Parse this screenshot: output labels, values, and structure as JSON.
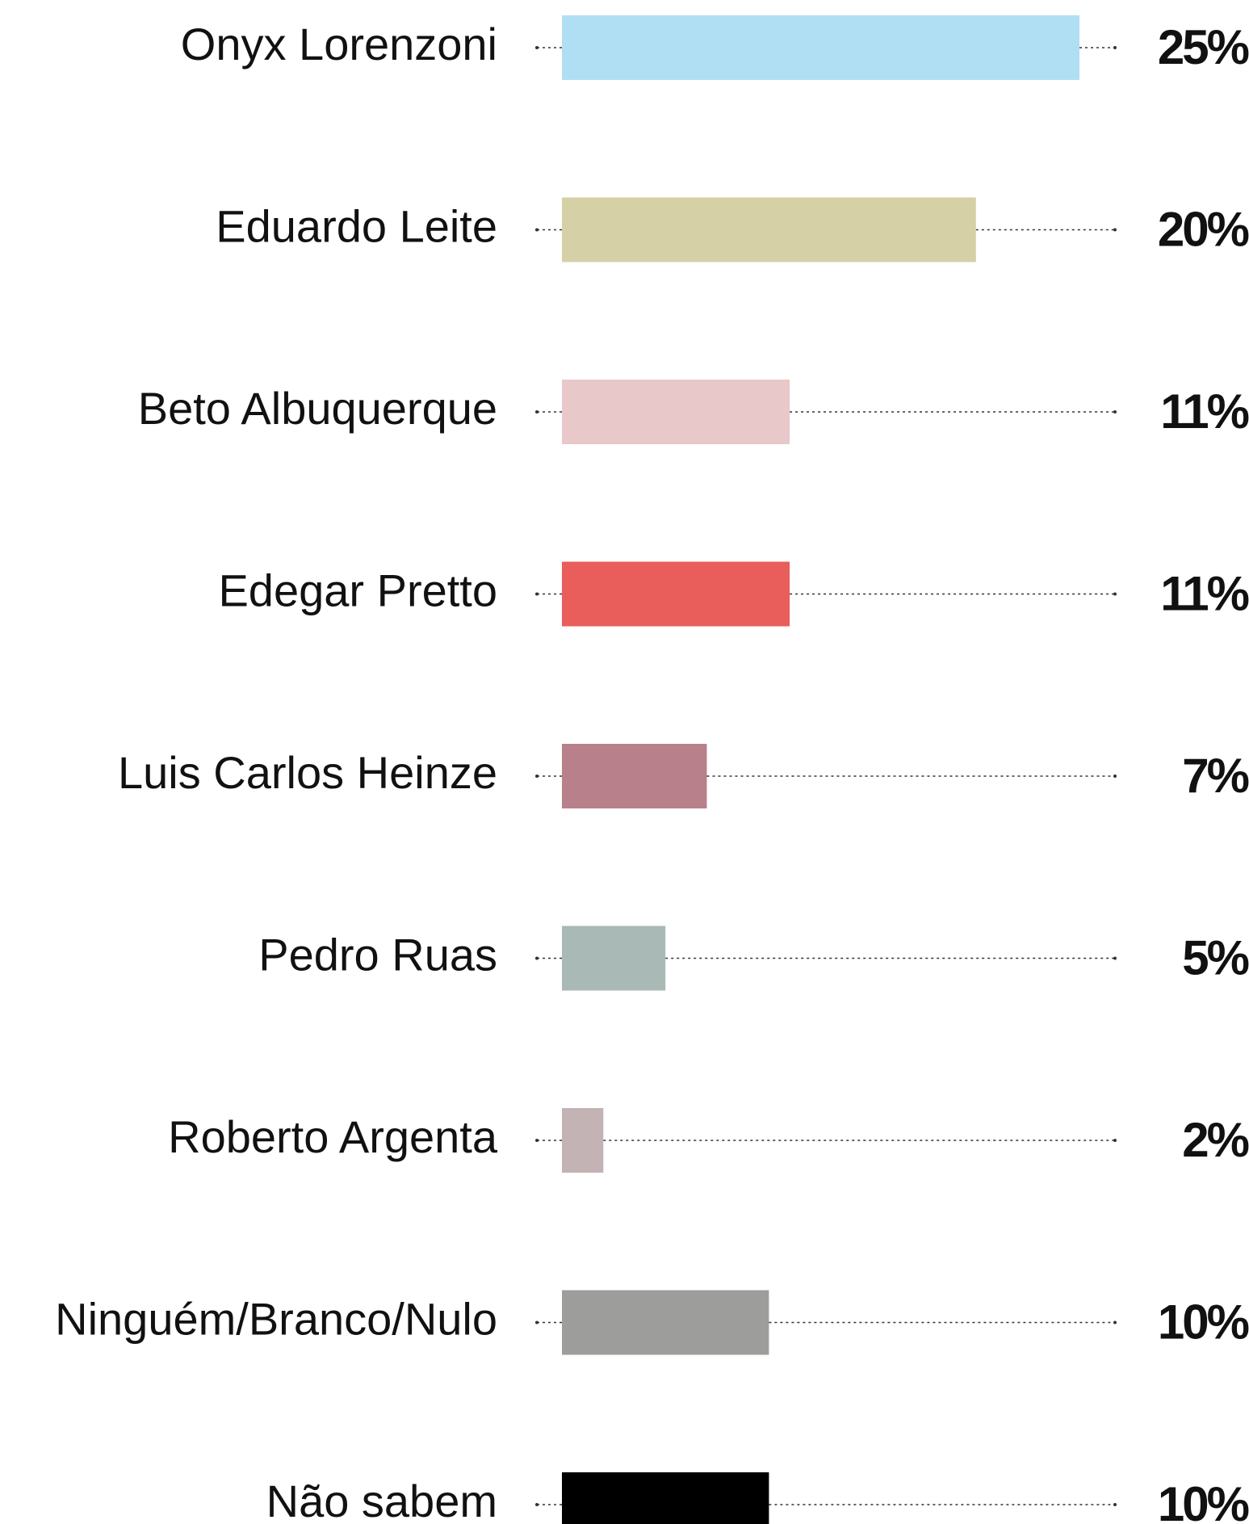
{
  "chart_data": {
    "type": "bar",
    "orientation": "horizontal",
    "categories": [
      "Onyx Lorenzoni",
      "Eduardo Leite",
      "Beto Albuquerque",
      "Edegar Pretto",
      "Luis Carlos Heinze",
      "Pedro Ruas",
      "Roberto Argenta",
      "Ninguém/Branco/Nulo",
      "Não sabem"
    ],
    "values": [
      25,
      20,
      11,
      11,
      7,
      5,
      2,
      10,
      10
    ],
    "value_labels": [
      "25%",
      "20%",
      "11%",
      "11%",
      "7%",
      "5%",
      "2%",
      "10%",
      "10%"
    ],
    "colors": [
      "#b0dff3",
      "#d6d0a6",
      "#e8c8c8",
      "#e95d5b",
      "#b8808a",
      "#a9b9b6",
      "#c3b3b4",
      "#9d9d9c",
      "#000000"
    ]
  }
}
